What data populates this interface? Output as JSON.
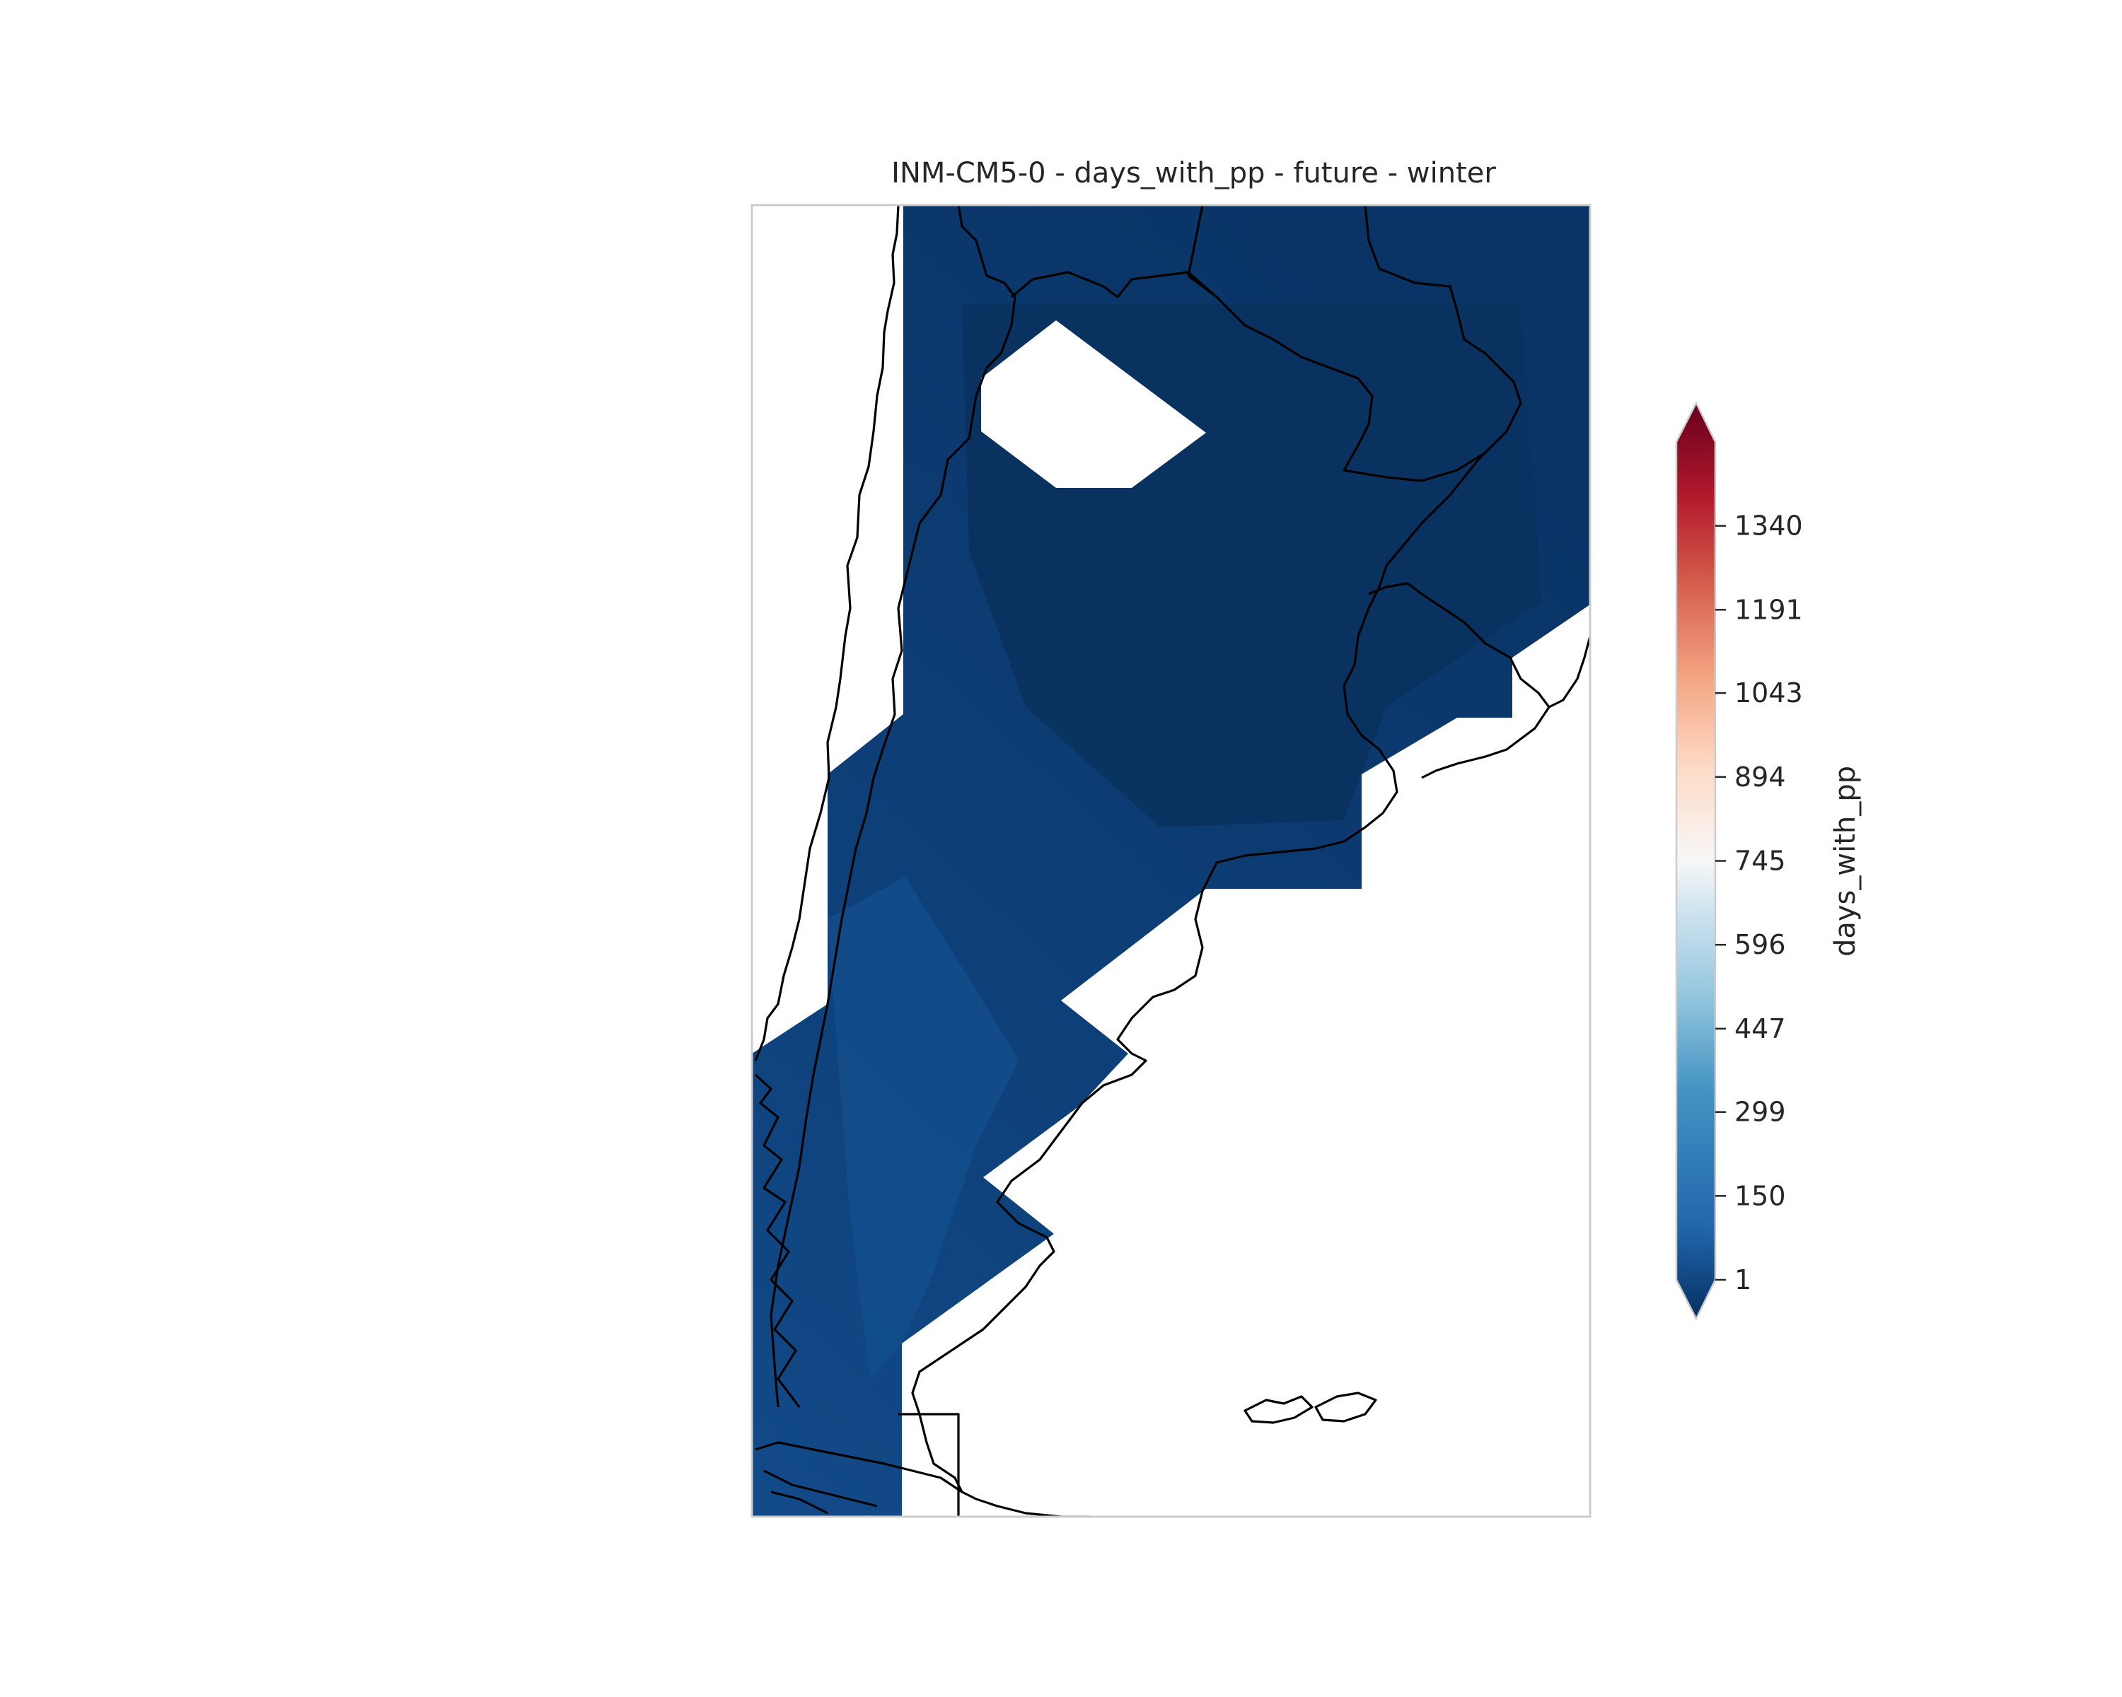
{
  "chart_data": {
    "type": "heatmap",
    "title": "INM-CM5-0 - days_with_pp - future - winter",
    "colorbar": {
      "label": "days_with_pp",
      "ticks": [
        1,
        150,
        299,
        447,
        596,
        745,
        894,
        1043,
        1191,
        1340
      ],
      "range": [
        1,
        1489
      ],
      "extend": "both",
      "colormap": "RdBu_r",
      "colors": {
        "low": "#053061",
        "low_mid": "#2166ac",
        "mid_low": "#4393c3",
        "light_blue": "#92c5de",
        "pale_blue": "#d1e5f0",
        "neutral": "#f7f7f7",
        "pale_red": "#fddbc7",
        "light_red": "#f4a582",
        "mid_red": "#d6604d",
        "red": "#b2182b",
        "high": "#67001f"
      }
    },
    "field_colors": {
      "north": "#0a3466",
      "center": "#0b3668",
      "west": "#0d3f78",
      "south": "#124a88"
    },
    "ranges": {
      "observed_value_range": [
        1,
        150
      ]
    },
    "legend_position": "right"
  }
}
